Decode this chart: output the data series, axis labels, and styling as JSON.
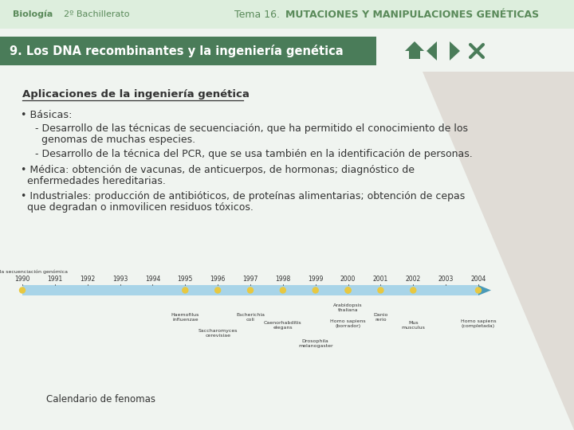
{
  "header_bg": "#f0f4f0",
  "title_bar_color": "#4a7c59",
  "title_bar_text": "9. Los DNA recombinantes y la ingeniería genética",
  "title_bar_text_color": "#ffffff",
  "header_left1": "Biología",
  "header_left2": "2º Bachillerato",
  "header_right_normal": "Tema 16. ",
  "header_right_bold": "MUTACIONES Y MANIPULACIONES GENÉTICAS",
  "header_text_color": "#5a8a5a",
  "section_title": "Aplicaciones de la ingeniería genética",
  "body_text_color": "#333333",
  "caption_text": "Calendario de fenomas",
  "right_tri_color": "#c8b8b0",
  "nav_color": "#4a7c59",
  "tl_color": "#a8d4e8",
  "tl_arrow_color": "#4a9ab8",
  "dot_color": "#e8c840",
  "years": [
    "1990",
    "1991",
    "1992",
    "1993",
    "1994",
    "1995",
    "1996",
    "1997",
    "1998",
    "1999",
    "2000",
    "2001",
    "2002",
    "2003",
    "2004"
  ],
  "milestone_indices": [
    0,
    5,
    6,
    7,
    8,
    9,
    10,
    10,
    11,
    12,
    14
  ]
}
